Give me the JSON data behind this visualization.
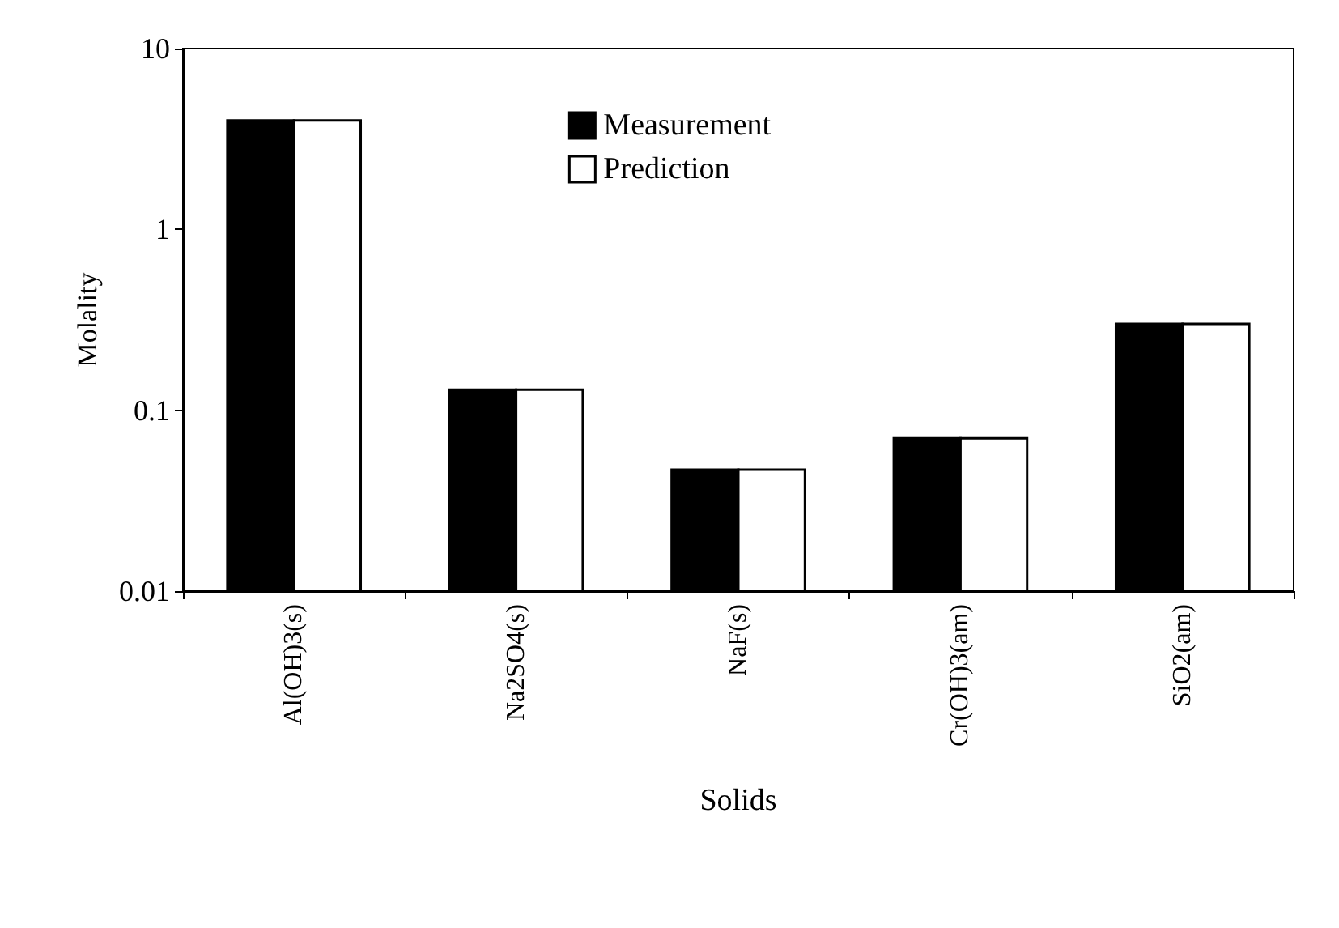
{
  "chart_data": {
    "type": "bar",
    "xlabel": "Solids",
    "ylabel": "Molality",
    "categories": [
      "Al(OH)3(s)",
      "Na2SO4(s)",
      "NaF(s)",
      "Cr(OH)3(am)",
      "SiO2(am)"
    ],
    "series": [
      {
        "name": "Measurement",
        "color": "#000000",
        "values": [
          4.0,
          0.13,
          0.047,
          0.07,
          0.3
        ]
      },
      {
        "name": "Prediction",
        "color": "#ffffff",
        "values": [
          4.0,
          0.13,
          0.047,
          0.07,
          0.3
        ]
      }
    ],
    "log": true,
    "ylim": [
      0.01,
      10
    ],
    "yticks": [
      0.01,
      0.1,
      1,
      10
    ],
    "grid": false,
    "legend": "top"
  }
}
